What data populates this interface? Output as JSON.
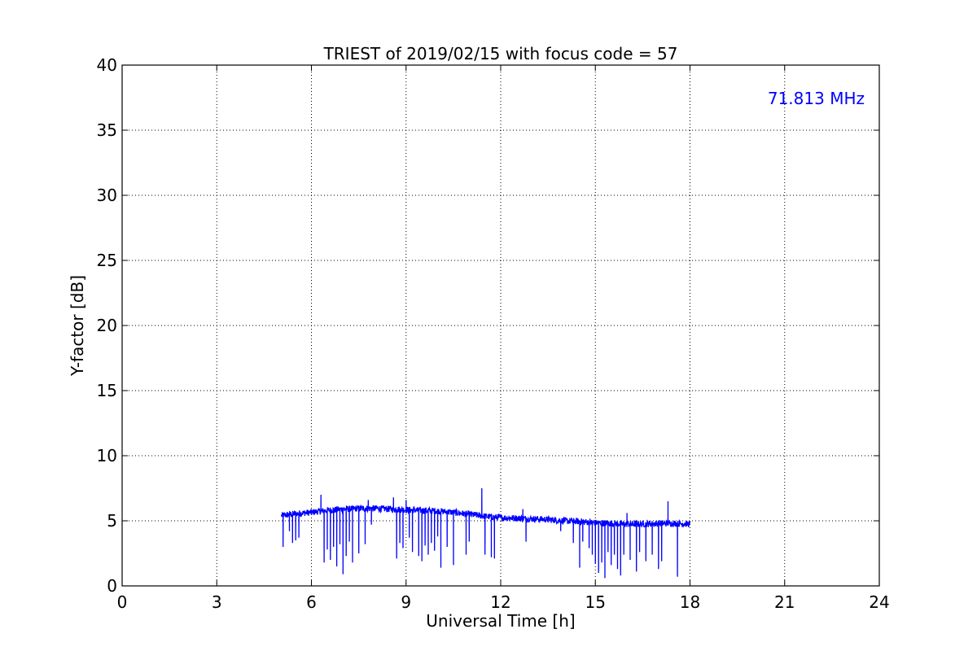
{
  "chart_data": {
    "type": "line",
    "title": "TRIEST of 2019/02/15 with focus code = 57",
    "xlabel": "Universal Time [h]",
    "ylabel": "Y-factor [dB]",
    "xlim": [
      0,
      24
    ],
    "ylim": [
      0,
      40
    ],
    "xticks": [
      0,
      3,
      6,
      9,
      12,
      15,
      18,
      21,
      24
    ],
    "yticks": [
      0,
      5,
      10,
      15,
      20,
      25,
      30,
      35,
      40
    ],
    "grid": true,
    "annotation": {
      "text": "71.813 MHz",
      "position": "top-right",
      "color": "#0000ff"
    },
    "series": [
      {
        "color": "#0000ff",
        "x_range": [
          5.05,
          18.0
        ],
        "baseline": [
          [
            5.05,
            5.4
          ],
          [
            5.5,
            5.55
          ],
          [
            6.0,
            5.65
          ],
          [
            6.5,
            5.8
          ],
          [
            7.0,
            5.9
          ],
          [
            7.5,
            5.95
          ],
          [
            8.0,
            5.95
          ],
          [
            8.5,
            5.9
          ],
          [
            9.0,
            5.85
          ],
          [
            9.5,
            5.8
          ],
          [
            10.0,
            5.75
          ],
          [
            10.5,
            5.65
          ],
          [
            11.0,
            5.5
          ],
          [
            11.5,
            5.35
          ],
          [
            12.0,
            5.25
          ],
          [
            12.5,
            5.2
          ],
          [
            13.0,
            5.15
          ],
          [
            13.5,
            5.1
          ],
          [
            14.0,
            5.0
          ],
          [
            14.5,
            4.95
          ],
          [
            15.0,
            4.85
          ],
          [
            15.5,
            4.8
          ],
          [
            16.0,
            4.75
          ],
          [
            16.5,
            4.75
          ],
          [
            17.0,
            4.8
          ],
          [
            17.5,
            4.8
          ],
          [
            18.0,
            4.75
          ]
        ],
        "dips": [
          [
            5.1,
            3.0
          ],
          [
            5.3,
            4.2
          ],
          [
            5.4,
            3.3
          ],
          [
            5.5,
            3.5
          ],
          [
            5.6,
            3.7
          ],
          [
            6.4,
            1.8
          ],
          [
            6.5,
            2.8
          ],
          [
            6.6,
            2.0
          ],
          [
            6.7,
            3.0
          ],
          [
            6.8,
            1.5
          ],
          [
            6.9,
            3.2
          ],
          [
            7.0,
            0.9
          ],
          [
            7.1,
            2.3
          ],
          [
            7.2,
            3.4
          ],
          [
            7.3,
            1.8
          ],
          [
            7.5,
            2.5
          ],
          [
            7.7,
            3.2
          ],
          [
            7.9,
            4.7
          ],
          [
            8.6,
            3.4
          ],
          [
            8.7,
            2.1
          ],
          [
            8.8,
            3.3
          ],
          [
            8.9,
            2.9
          ],
          [
            9.0,
            1.3
          ],
          [
            9.1,
            3.7
          ],
          [
            9.2,
            2.6
          ],
          [
            9.4,
            2.3
          ],
          [
            9.5,
            1.9
          ],
          [
            9.6,
            3.1
          ],
          [
            9.7,
            2.4
          ],
          [
            9.8,
            3.3
          ],
          [
            9.9,
            2.7
          ],
          [
            10.0,
            3.8
          ],
          [
            10.1,
            1.4
          ],
          [
            10.3,
            3.0
          ],
          [
            10.5,
            1.6
          ],
          [
            10.9,
            2.4
          ],
          [
            11.0,
            3.4
          ],
          [
            11.4,
            2.6
          ],
          [
            11.5,
            2.4
          ],
          [
            11.7,
            2.2
          ],
          [
            11.8,
            2.1
          ],
          [
            12.8,
            3.4
          ],
          [
            13.9,
            4.2
          ],
          [
            14.0,
            3.8
          ],
          [
            14.3,
            3.3
          ],
          [
            14.5,
            1.4
          ],
          [
            14.6,
            3.4
          ],
          [
            14.8,
            2.9
          ],
          [
            14.9,
            2.4
          ],
          [
            15.0,
            1.7
          ],
          [
            15.1,
            1.0
          ],
          [
            15.2,
            1.8
          ],
          [
            15.3,
            0.6
          ],
          [
            15.4,
            2.6
          ],
          [
            15.5,
            1.6
          ],
          [
            15.6,
            2.4
          ],
          [
            15.7,
            1.3
          ],
          [
            15.8,
            0.8
          ],
          [
            15.9,
            2.4
          ],
          [
            16.0,
            0.3
          ],
          [
            16.1,
            2.0
          ],
          [
            16.3,
            1.1
          ],
          [
            16.4,
            2.6
          ],
          [
            16.6,
            1.9
          ],
          [
            16.8,
            2.4
          ],
          [
            17.0,
            1.3
          ],
          [
            17.1,
            1.9
          ],
          [
            17.3,
            2.8
          ],
          [
            17.6,
            0.7
          ]
        ],
        "spikes": [
          [
            6.3,
            7.0
          ],
          [
            7.8,
            6.6
          ],
          [
            8.6,
            6.8
          ],
          [
            9.0,
            6.6
          ],
          [
            11.4,
            7.5
          ],
          [
            12.7,
            5.9
          ],
          [
            14.0,
            5.3
          ],
          [
            16.0,
            5.6
          ],
          [
            17.3,
            6.5
          ]
        ],
        "noise_amplitude": 0.25
      }
    ]
  }
}
